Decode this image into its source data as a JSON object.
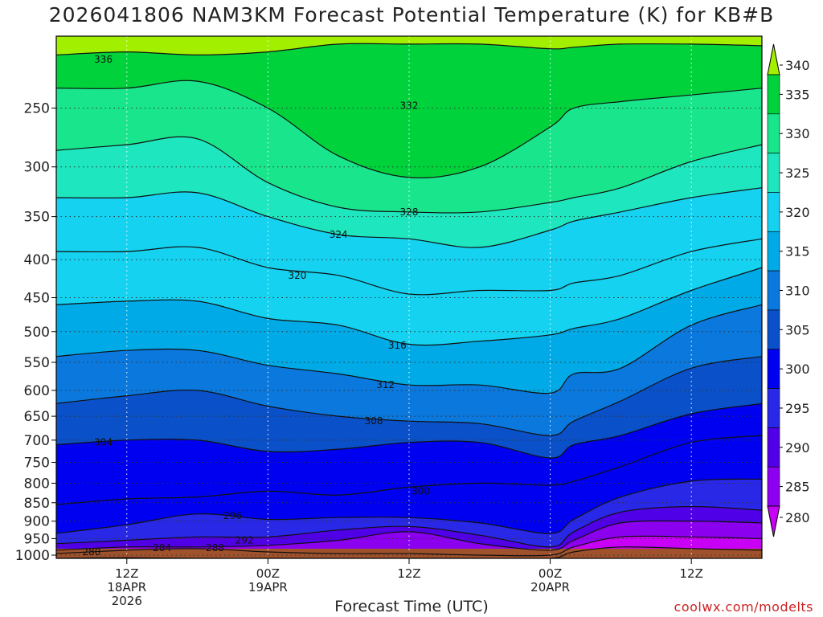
{
  "title": "2026041806 NAM3KM Forecast Potential Temperature (K) for KB#B",
  "credit": "coolwx.com/modelts",
  "colors": {
    "ground": "#a0522d",
    "grid": "#333333",
    "contour": "#111111",
    "frame": "#000000"
  },
  "chart_data": {
    "type": "heatmap",
    "title": "2026041806 NAM3KM Forecast Potential Temperature (K) for KB#B",
    "xlabel": "Forecast Time (UTC)",
    "ylabel": "",
    "x_unit": "forecast hour",
    "xlim": [
      0,
      60
    ],
    "ylim": [
      1010,
      200
    ],
    "y_scale": "log-pressure",
    "grid": true,
    "x_ticks": [
      {
        "x": 6,
        "lines": [
          "12Z",
          "18APR",
          "2026"
        ]
      },
      {
        "x": 18,
        "lines": [
          "00Z",
          "19APR"
        ]
      },
      {
        "x": 30,
        "lines": [
          "12Z"
        ]
      },
      {
        "x": 42,
        "lines": [
          "00Z",
          "20APR"
        ]
      },
      {
        "x": 54,
        "lines": [
          "12Z"
        ]
      }
    ],
    "y_ticks": [
      250,
      300,
      350,
      400,
      450,
      500,
      550,
      600,
      650,
      700,
      750,
      800,
      850,
      900,
      950,
      1000
    ],
    "colorbar": {
      "labels": [
        "340",
        "335",
        "330",
        "325",
        "320",
        "315",
        "310",
        "305",
        "300",
        "295",
        "290",
        "285",
        "280"
      ],
      "levels": [
        340,
        335,
        330,
        325,
        320,
        315,
        310,
        305,
        300,
        295,
        290,
        285,
        280
      ],
      "colors": [
        "#a2f000",
        "#00d23c",
        "#19e68c",
        "#1ee6be",
        "#14d2f0",
        "#00aae6",
        "#0a78dc",
        "#0a50c8",
        "#0000f0",
        "#2828e6",
        "#5000e6",
        "#8c00f0",
        "#c800f5"
      ]
    },
    "series": [
      {
        "name": "280",
        "label": "280",
        "label_at": {
          "x": 3,
          "p": 990
        },
        "x": [
          0,
          6,
          12,
          18,
          24,
          30,
          36,
          42,
          44,
          48,
          54,
          60
        ],
        "p": [
          1010,
          1008,
          1010,
          1010,
          1010,
          1010,
          1010,
          1010,
          990,
          975,
          980,
          985
        ]
      },
      {
        "name": "284",
        "label": "284",
        "label_at": {
          "x": 9,
          "p": 978
        },
        "x": [
          0,
          6,
          12,
          18,
          24,
          30,
          36,
          42,
          44,
          48,
          54,
          60
        ],
        "p": [
          995,
          985,
          980,
          990,
          995,
          995,
          1000,
          1000,
          975,
          945,
          945,
          950
        ]
      },
      {
        "name": "288",
        "label": "288",
        "label_at": {
          "x": 13.5,
          "p": 978
        },
        "x": [
          0,
          6,
          12,
          18,
          24,
          30,
          36,
          42,
          44,
          48,
          54,
          60
        ],
        "p": [
          985,
          975,
          975,
          970,
          955,
          930,
          965,
          985,
          955,
          905,
          900,
          905
        ]
      },
      {
        "name": "292",
        "label": "292",
        "label_at": {
          "x": 16,
          "p": 955
        },
        "x": [
          0,
          6,
          12,
          18,
          24,
          30,
          36,
          42,
          44,
          48,
          54,
          60
        ],
        "p": [
          965,
          955,
          945,
          945,
          925,
          915,
          940,
          975,
          930,
          875,
          860,
          870
        ]
      },
      {
        "name": "296",
        "label": "296",
        "label_at": {
          "x": 15,
          "p": 885
        },
        "x": [
          0,
          6,
          12,
          18,
          24,
          30,
          36,
          42,
          44,
          48,
          54,
          60
        ],
        "p": [
          935,
          910,
          880,
          895,
          890,
          890,
          905,
          935,
          895,
          835,
          795,
          790
        ]
      },
      {
        "name": "300",
        "label": "300",
        "label_at": {
          "x": 31,
          "p": 820
        },
        "x": [
          0,
          6,
          12,
          18,
          24,
          30,
          36,
          42,
          44,
          48,
          54,
          60
        ],
        "p": [
          855,
          840,
          835,
          820,
          830,
          810,
          800,
          805,
          795,
          760,
          705,
          690
        ]
      },
      {
        "name": "304",
        "label": "304",
        "label_at": {
          "x": 4,
          "p": 705
        },
        "x": [
          0,
          6,
          12,
          18,
          24,
          30,
          36,
          42,
          44,
          48,
          54,
          60
        ],
        "p": [
          710,
          700,
          700,
          725,
          720,
          705,
          705,
          740,
          710,
          690,
          645,
          625
        ]
      },
      {
        "name": "308",
        "label": "308",
        "label_at": {
          "x": 27,
          "p": 660
        },
        "x": [
          0,
          6,
          12,
          18,
          24,
          30,
          36,
          42,
          44,
          48,
          54,
          60
        ],
        "p": [
          625,
          610,
          600,
          630,
          650,
          660,
          665,
          690,
          660,
          620,
          560,
          540
        ]
      },
      {
        "name": "312",
        "label": "312",
        "label_at": {
          "x": 28,
          "p": 590
        },
        "x": [
          0,
          6,
          12,
          18,
          24,
          30,
          36,
          42,
          44,
          48,
          54,
          60
        ],
        "p": [
          540,
          530,
          530,
          555,
          570,
          590,
          590,
          605,
          570,
          560,
          490,
          460
        ]
      },
      {
        "name": "316",
        "label": "316",
        "label_at": {
          "x": 29,
          "p": 522
        },
        "x": [
          0,
          6,
          12,
          18,
          24,
          30,
          36,
          42,
          44,
          48,
          54,
          60
        ],
        "p": [
          460,
          455,
          455,
          480,
          490,
          520,
          515,
          505,
          495,
          480,
          440,
          410
        ]
      },
      {
        "name": "320",
        "label": "320",
        "label_at": {
          "x": 20.5,
          "p": 420
        },
        "x": [
          0,
          6,
          12,
          18,
          24,
          30,
          36,
          42,
          44,
          48,
          54,
          60
        ],
        "p": [
          390,
          390,
          385,
          410,
          420,
          445,
          440,
          440,
          430,
          420,
          390,
          375
        ]
      },
      {
        "name": "324",
        "label": "324",
        "label_at": {
          "x": 24,
          "p": 370
        },
        "x": [
          0,
          6,
          12,
          18,
          24,
          30,
          36,
          42,
          44,
          48,
          54,
          60
        ],
        "p": [
          330,
          330,
          325,
          350,
          370,
          375,
          385,
          365,
          355,
          345,
          330,
          320
        ]
      },
      {
        "name": "328",
        "label": "328",
        "label_at": {
          "x": 30,
          "p": 345
        },
        "x": [
          0,
          6,
          12,
          18,
          24,
          30,
          36,
          42,
          44,
          48,
          54,
          60
        ],
        "p": [
          285,
          280,
          275,
          315,
          340,
          345,
          345,
          335,
          330,
          320,
          295,
          280
        ]
      },
      {
        "name": "332",
        "label": "332",
        "label_at": {
          "x": 30,
          "p": 248
        },
        "x": [
          0,
          6,
          12,
          18,
          24,
          30,
          36,
          42,
          44,
          48,
          54,
          60
        ],
        "p": [
          235,
          235,
          230,
          250,
          290,
          310,
          300,
          265,
          250,
          245,
          240,
          235
        ]
      },
      {
        "name": "336",
        "label": "336",
        "label_at": {
          "x": 4,
          "p": 215
        },
        "x": [
          0,
          6,
          12,
          18,
          24,
          30,
          36,
          42,
          44,
          48,
          54,
          60
        ],
        "p": [
          212,
          210,
          212,
          210,
          205,
          205,
          205,
          208,
          207,
          205,
          205,
          206
        ]
      }
    ]
  }
}
